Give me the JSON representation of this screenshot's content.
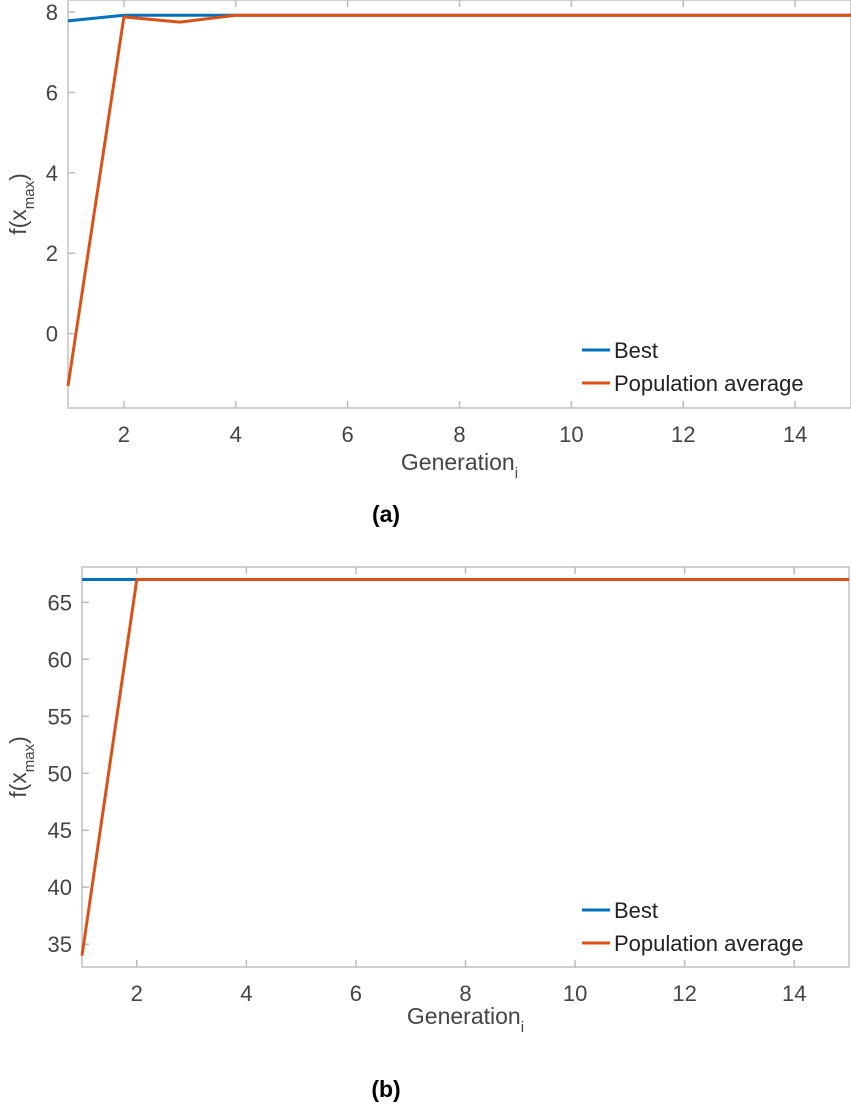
{
  "chart_data": [
    {
      "type": "line",
      "caption": "(a)",
      "xlabel": "Generation",
      "xlabel_subscript": "i",
      "ylabel": "f(x",
      "ylabel_subscript": "max",
      "ylabel_suffix": ")",
      "xlim": [
        1,
        15
      ],
      "ylim": [
        -1.85,
        8.3
      ],
      "xticks": [
        2,
        4,
        6,
        8,
        10,
        12,
        14
      ],
      "yticks": [
        0,
        2,
        4,
        6,
        8
      ],
      "grid": false,
      "legend_position": "bottom-right",
      "x": [
        1,
        2,
        3,
        4,
        5,
        6,
        7,
        8,
        9,
        10,
        11,
        12,
        13,
        14,
        15
      ],
      "series": [
        {
          "name": "Best",
          "color": "#0072BD",
          "values": [
            7.78,
            7.92,
            7.92,
            7.92,
            7.92,
            7.92,
            7.92,
            7.92,
            7.92,
            7.92,
            7.92,
            7.92,
            7.92,
            7.92,
            7.92
          ]
        },
        {
          "name": "Population average",
          "color": "#D95319",
          "values": [
            -1.3,
            7.88,
            7.75,
            7.92,
            7.92,
            7.92,
            7.92,
            7.92,
            7.92,
            7.92,
            7.92,
            7.92,
            7.92,
            7.92,
            7.92
          ]
        }
      ]
    },
    {
      "type": "line",
      "caption": "(b)",
      "xlabel": "Generation",
      "xlabel_subscript": "i",
      "ylabel": "f(x",
      "ylabel_subscript": "max",
      "ylabel_suffix": ")",
      "xlim": [
        1,
        15
      ],
      "ylim": [
        33,
        68.1
      ],
      "xticks": [
        2,
        4,
        6,
        8,
        10,
        12,
        14
      ],
      "yticks": [
        35,
        40,
        45,
        50,
        55,
        60,
        65
      ],
      "grid": false,
      "legend_position": "bottom-right",
      "x": [
        1,
        2,
        3,
        4,
        5,
        6,
        7,
        8,
        9,
        10,
        11,
        12,
        13,
        14,
        15
      ],
      "series": [
        {
          "name": "Best",
          "color": "#0072BD",
          "values": [
            67,
            67,
            67,
            67,
            67,
            67,
            67,
            67,
            67,
            67,
            67,
            67,
            67,
            67,
            67
          ]
        },
        {
          "name": "Population average",
          "color": "#D95319",
          "values": [
            34,
            67,
            67,
            67,
            67,
            67,
            67,
            67,
            67,
            67,
            67,
            67,
            67,
            67,
            67
          ]
        }
      ]
    }
  ]
}
